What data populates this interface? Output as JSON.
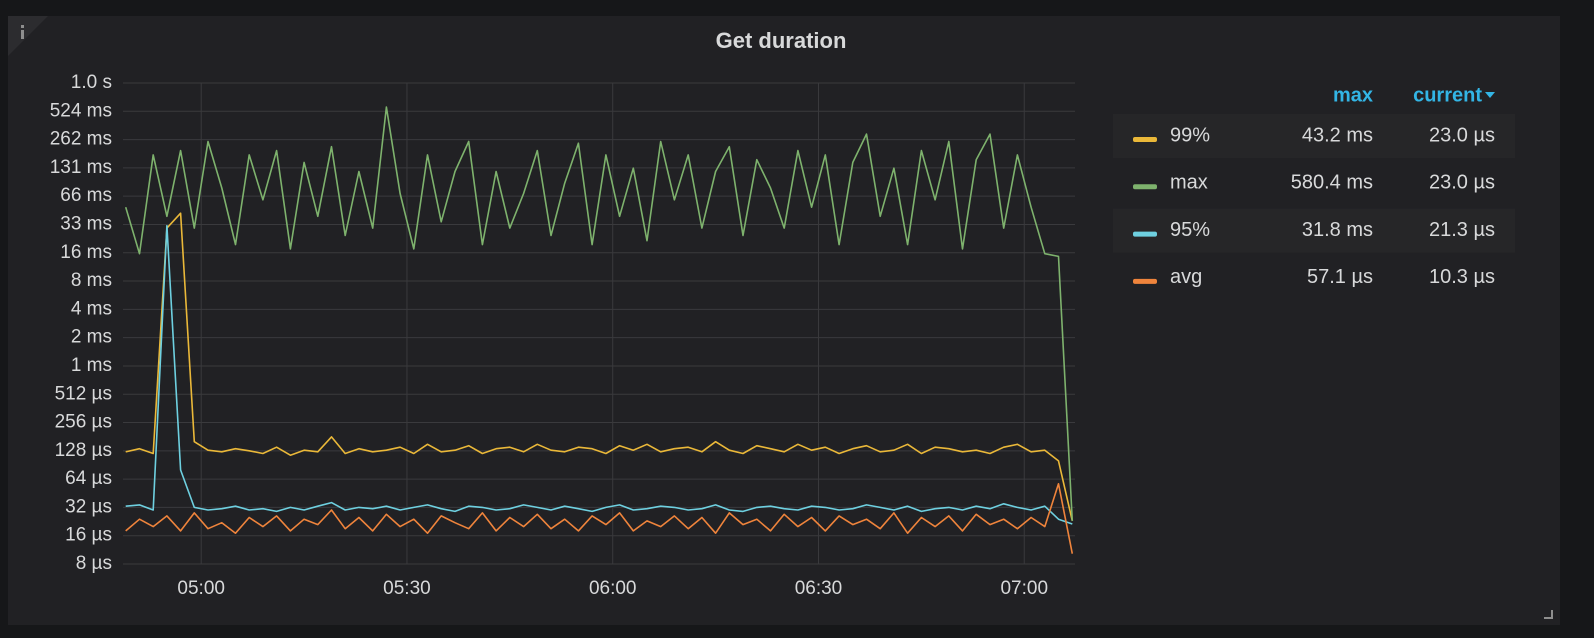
{
  "chart_data": {
    "type": "line",
    "title": "Get duration",
    "log_scale": true,
    "grid": true,
    "x": [
      289,
      291,
      293,
      295,
      297,
      299,
      301,
      303,
      305,
      307,
      309,
      311,
      313,
      315,
      317,
      319,
      321,
      323,
      325,
      327,
      329,
      331,
      333,
      335,
      337,
      339,
      341,
      343,
      345,
      347,
      349,
      351,
      353,
      355,
      357,
      359,
      361,
      363,
      365,
      367,
      369,
      371,
      373,
      375,
      377,
      379,
      381,
      383,
      385,
      387,
      389,
      391,
      393,
      395,
      397,
      399,
      401,
      403,
      405,
      407,
      409,
      411,
      413,
      415,
      417,
      419,
      421,
      423,
      425,
      427
    ],
    "xlim": [
      288.6,
      427.4
    ],
    "xticks": [
      {
        "value": 300,
        "label": "05:00"
      },
      {
        "value": 330,
        "label": "05:30"
      },
      {
        "value": 360,
        "label": "06:00"
      },
      {
        "value": 390,
        "label": "06:30"
      },
      {
        "value": 420,
        "label": "07:00"
      }
    ],
    "ylim": [
      8,
      1048576
    ],
    "yticks": [
      {
        "value": 8,
        "label": "8 µs"
      },
      {
        "value": 16,
        "label": "16 µs"
      },
      {
        "value": 32,
        "label": "32 µs"
      },
      {
        "value": 64,
        "label": "64 µs"
      },
      {
        "value": 128,
        "label": "128 µs"
      },
      {
        "value": 256,
        "label": "256 µs"
      },
      {
        "value": 512,
        "label": "512 µs"
      },
      {
        "value": 1024,
        "label": "1 ms"
      },
      {
        "value": 2048,
        "label": "2 ms"
      },
      {
        "value": 4096,
        "label": "4 ms"
      },
      {
        "value": 8192,
        "label": "8 ms"
      },
      {
        "value": 16384,
        "label": "16 ms"
      },
      {
        "value": 32768,
        "label": "33 ms"
      },
      {
        "value": 65536,
        "label": "66 ms"
      },
      {
        "value": 131072,
        "label": "131 ms"
      },
      {
        "value": 262144,
        "label": "262 ms"
      },
      {
        "value": 524288,
        "label": "524 ms"
      },
      {
        "value": 1048576,
        "label": "1.0 s"
      }
    ],
    "legend": {
      "columns": [
        "max",
        "current"
      ]
    },
    "series": [
      {
        "name": "99%",
        "color": "#eab839",
        "max": "43.2 ms",
        "current": "23.0 µs",
        "values": [
          125,
          135,
          120,
          30000,
          43200,
          160,
          130,
          125,
          135,
          128,
          120,
          140,
          115,
          130,
          125,
          180,
          120,
          135,
          125,
          130,
          140,
          120,
          150,
          125,
          130,
          145,
          120,
          135,
          140,
          125,
          150,
          130,
          125,
          140,
          135,
          120,
          145,
          130,
          150,
          125,
          135,
          140,
          125,
          160,
          130,
          120,
          145,
          135,
          125,
          150,
          130,
          140,
          120,
          135,
          145,
          125,
          130,
          150,
          120,
          140,
          135,
          125,
          130,
          120,
          140,
          150,
          125,
          130,
          100,
          23.0
        ]
      },
      {
        "name": "max",
        "color": "#7eb26d",
        "max": "580.4 ms",
        "current": "23.0 µs",
        "values": [
          50000,
          16000,
          180000,
          40000,
          200000,
          30000,
          250000,
          80000,
          20000,
          180000,
          60000,
          200000,
          18000,
          150000,
          40000,
          220000,
          25000,
          120000,
          30000,
          580400,
          70000,
          18000,
          180000,
          35000,
          120000,
          250000,
          20000,
          120000,
          30000,
          70000,
          200000,
          25000,
          90000,
          240000,
          20000,
          180000,
          40000,
          130000,
          22000,
          250000,
          60000,
          180000,
          30000,
          120000,
          220000,
          25000,
          160000,
          80000,
          30000,
          200000,
          50000,
          180000,
          20000,
          150000,
          300000,
          40000,
          130000,
          20000,
          200000,
          60000,
          250000,
          18000,
          160000,
          300000,
          30000,
          180000,
          50000,
          16000,
          15000,
          23.0
        ]
      },
      {
        "name": "95%",
        "color": "#6ed0e0",
        "max": "31.8 ms",
        "current": "21.3 µs",
        "values": [
          33,
          34,
          30,
          31800,
          80,
          32,
          30,
          31,
          33,
          30,
          31,
          29,
          32,
          30,
          33,
          36,
          30,
          32,
          31,
          33,
          30,
          32,
          34,
          31,
          29,
          33,
          32,
          30,
          31,
          34,
          32,
          30,
          33,
          31,
          29,
          32,
          34,
          30,
          31,
          33,
          32,
          30,
          31,
          34,
          30,
          29,
          32,
          33,
          31,
          30,
          33,
          32,
          30,
          31,
          34,
          32,
          30,
          33,
          29,
          31,
          32,
          30,
          33,
          31,
          35,
          32,
          30,
          33,
          24,
          21.3
        ]
      },
      {
        "name": "avg",
        "color": "#ef843c",
        "max": "57.1 µs",
        "current": "10.3 µs",
        "values": [
          18,
          24,
          20,
          26,
          18,
          28,
          19,
          22,
          17,
          25,
          20,
          26,
          18,
          24,
          21,
          30,
          19,
          25,
          18,
          27,
          20,
          24,
          17,
          26,
          22,
          19,
          28,
          18,
          25,
          20,
          27,
          19,
          24,
          18,
          26,
          21,
          28,
          18,
          23,
          20,
          26,
          19,
          25,
          17,
          28,
          21,
          24,
          18,
          27,
          20,
          25,
          18,
          26,
          21,
          24,
          19,
          28,
          17,
          25,
          20,
          26,
          18,
          27,
          21,
          24,
          19,
          25,
          20,
          57.1,
          10.3
        ]
      }
    ]
  }
}
